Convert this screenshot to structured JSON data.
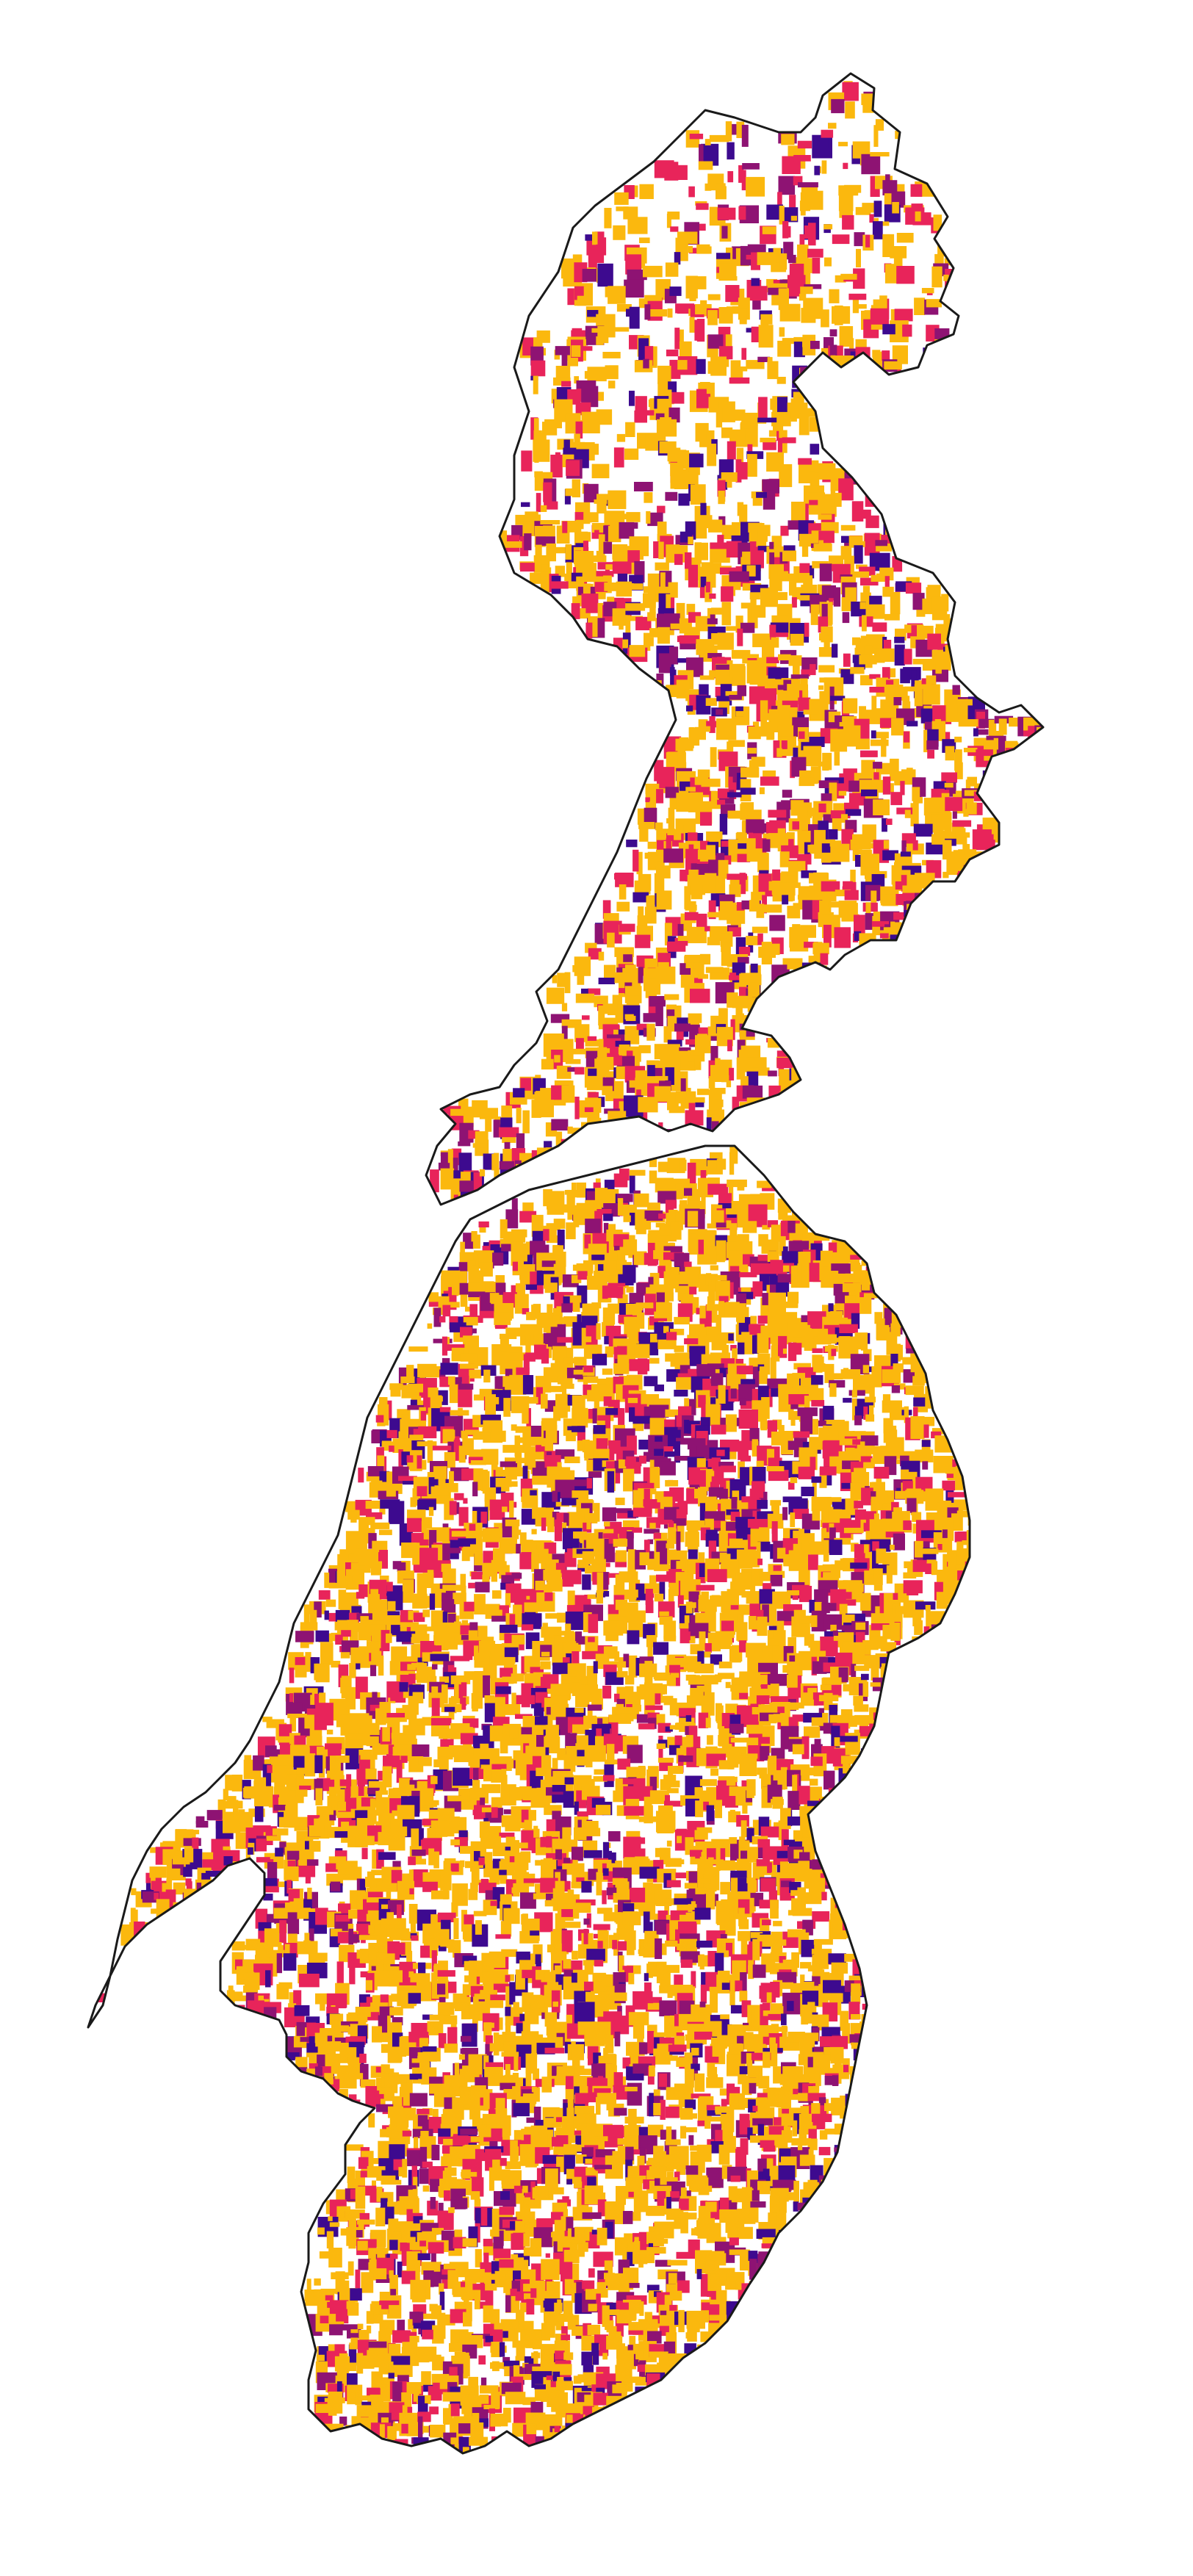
{
  "map": {
    "type": "choropleth-patches",
    "background": "#ffffff",
    "outline_color": "#1a1a1a",
    "palette": {
      "yellow": "#fbb80e",
      "pink": "#e8245a",
      "purple": "#8e1373",
      "indigo": "#3d0a8f"
    },
    "category_weights": {
      "yellow": 0.66,
      "pink": 0.18,
      "purple": 0.09,
      "indigo": 0.07
    },
    "legend": null
  }
}
